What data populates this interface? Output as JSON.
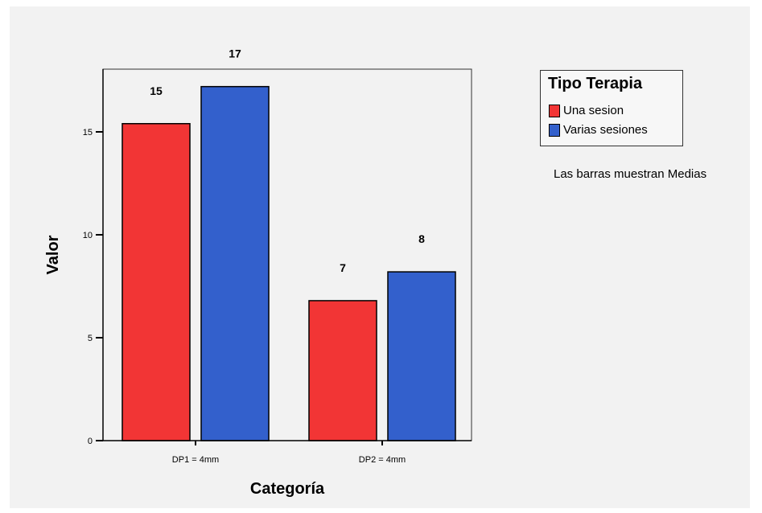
{
  "chart_data": {
    "type": "bar",
    "categories": [
      "DP1 = 4mm",
      "DP2 = 4mm"
    ],
    "series": [
      {
        "name": "Una sesion",
        "values": [
          15.4,
          6.8
        ],
        "labels": [
          "15",
          "7"
        ],
        "color": "#f23535"
      },
      {
        "name": "Varias sesiones",
        "values": [
          17.2,
          8.2
        ],
        "labels": [
          "17",
          "8"
        ],
        "color": "#3360cc"
      }
    ],
    "title": "",
    "xlabel": "Categoría",
    "ylabel": "Valor",
    "ylim": [
      0,
      18
    ],
    "yticks": [
      0,
      5,
      10,
      15
    ],
    "grid": false,
    "legend": {
      "title": "Tipo Terapia",
      "placement": "right"
    },
    "annotation": "Las barras muestran Medias"
  }
}
